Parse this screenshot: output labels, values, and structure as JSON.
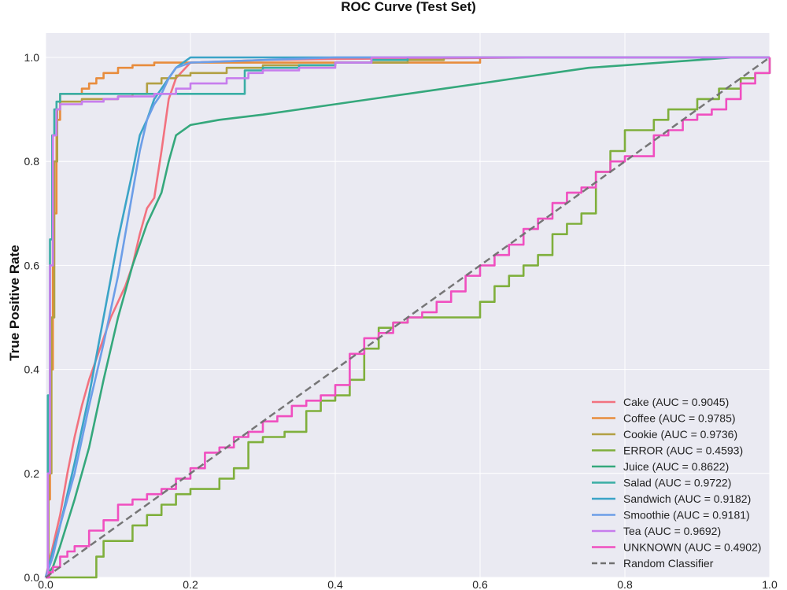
{
  "chart_data": {
    "type": "line",
    "title": "ROC Curve (Test Set)",
    "xlabel": "",
    "ylabel": "True Positive Rate",
    "xlim": [
      0.0,
      1.0
    ],
    "ylim": [
      0.0,
      1.0
    ],
    "x_ticks": [
      "0.0",
      "0.2",
      "0.4",
      "0.6",
      "0.8",
      "1.0"
    ],
    "y_ticks": [
      "0.0",
      "0.2",
      "0.4",
      "0.6",
      "0.8",
      "1.0"
    ],
    "grid": true,
    "legend_position": "bottom-right",
    "series": [
      {
        "name": "Cake (AUC = 0.9045)",
        "color": "#f2727f",
        "x": [
          0,
          0.005,
          0.01,
          0.02,
          0.03,
          0.04,
          0.05,
          0.06,
          0.07,
          0.08,
          0.09,
          0.1,
          0.11,
          0.12,
          0.13,
          0.14,
          0.15,
          0.16,
          0.17,
          0.18,
          0.2,
          0.3,
          0.4,
          0.5,
          0.6,
          0.7,
          0.8,
          0.9,
          1.0
        ],
        "y": [
          0,
          0.03,
          0.06,
          0.12,
          0.2,
          0.27,
          0.33,
          0.38,
          0.42,
          0.46,
          0.5,
          0.53,
          0.56,
          0.6,
          0.66,
          0.71,
          0.73,
          0.82,
          0.92,
          0.96,
          0.99,
          0.995,
          0.997,
          0.998,
          0.999,
          1.0,
          1.0,
          1.0,
          1.0
        ]
      },
      {
        "name": "Coffee (AUC = 0.9785)",
        "color": "#e88c3c",
        "x": [
          0,
          0.003,
          0.006,
          0.01,
          0.015,
          0.02,
          0.03,
          0.05,
          0.06,
          0.07,
          0.08,
          0.1,
          0.12,
          0.15,
          0.2,
          0.3,
          0.4,
          0.5,
          0.58,
          0.6,
          1.0
        ],
        "y": [
          0,
          0.15,
          0.4,
          0.7,
          0.88,
          0.93,
          0.93,
          0.94,
          0.95,
          0.96,
          0.97,
          0.98,
          0.985,
          0.99,
          0.99,
          0.99,
          0.99,
          0.99,
          0.99,
          1.0,
          1.0
        ],
        "step": true
      },
      {
        "name": "Cookie (AUC = 0.9736)",
        "color": "#b2a043",
        "x": [
          0,
          0.004,
          0.008,
          0.012,
          0.016,
          0.02,
          0.05,
          0.1,
          0.12,
          0.14,
          0.16,
          0.18,
          0.2,
          0.25,
          0.3,
          0.4,
          0.5,
          0.55,
          1.0
        ],
        "y": [
          0,
          0.2,
          0.5,
          0.8,
          0.9,
          0.915,
          0.92,
          0.925,
          0.93,
          0.95,
          0.96,
          0.965,
          0.97,
          0.98,
          0.985,
          0.99,
          0.995,
          1.0,
          1.0
        ],
        "step": true
      },
      {
        "name": "ERROR (AUC = 0.4593)",
        "color": "#7faf3c",
        "x": [
          0,
          0.06,
          0.07,
          0.08,
          0.1,
          0.12,
          0.14,
          0.16,
          0.18,
          0.2,
          0.22,
          0.24,
          0.26,
          0.28,
          0.3,
          0.33,
          0.36,
          0.38,
          0.4,
          0.42,
          0.44,
          0.46,
          0.48,
          0.5,
          0.52,
          0.55,
          0.58,
          0.6,
          0.62,
          0.64,
          0.66,
          0.68,
          0.7,
          0.72,
          0.74,
          0.76,
          0.78,
          0.8,
          0.82,
          0.84,
          0.86,
          0.9,
          0.93,
          0.96,
          0.98,
          1.0
        ],
        "y": [
          0,
          0,
          0.04,
          0.07,
          0.07,
          0.1,
          0.12,
          0.14,
          0.16,
          0.17,
          0.17,
          0.19,
          0.21,
          0.26,
          0.27,
          0.28,
          0.32,
          0.34,
          0.35,
          0.38,
          0.44,
          0.48,
          0.49,
          0.5,
          0.5,
          0.5,
          0.5,
          0.53,
          0.56,
          0.58,
          0.6,
          0.62,
          0.66,
          0.68,
          0.7,
          0.78,
          0.82,
          0.86,
          0.86,
          0.88,
          0.9,
          0.92,
          0.94,
          0.96,
          0.97,
          1.0
        ],
        "step": true
      },
      {
        "name": "Juice (AUC = 0.8622)",
        "color": "#35a87c",
        "x": [
          0,
          0.01,
          0.02,
          0.04,
          0.06,
          0.08,
          0.1,
          0.12,
          0.14,
          0.16,
          0.17,
          0.18,
          0.2,
          0.24,
          0.3,
          0.35,
          0.4,
          0.45,
          0.5,
          0.55,
          0.6,
          0.65,
          0.7,
          0.75,
          0.8,
          0.85,
          0.9,
          0.95,
          1.0
        ],
        "y": [
          0,
          0.02,
          0.06,
          0.15,
          0.25,
          0.38,
          0.5,
          0.6,
          0.68,
          0.74,
          0.8,
          0.85,
          0.87,
          0.88,
          0.89,
          0.9,
          0.91,
          0.92,
          0.93,
          0.94,
          0.95,
          0.96,
          0.97,
          0.98,
          0.985,
          0.99,
          0.995,
          1.0,
          1.0
        ]
      },
      {
        "name": "Salad (AUC = 0.9722)",
        "color": "#3aaea5",
        "x": [
          0,
          0.003,
          0.006,
          0.009,
          0.012,
          0.015,
          0.02,
          0.1,
          0.27,
          0.275,
          0.3,
          0.35,
          0.4,
          0.45,
          0.5,
          0.55,
          1.0
        ],
        "y": [
          0,
          0.35,
          0.65,
          0.85,
          0.9,
          0.915,
          0.93,
          0.93,
          0.93,
          0.975,
          0.98,
          0.985,
          0.99,
          0.995,
          1.0,
          1.0,
          1.0
        ],
        "step": true
      },
      {
        "name": "Sandwich (AUC = 0.9182)",
        "color": "#3ba4c7",
        "x": [
          0,
          0.01,
          0.02,
          0.04,
          0.06,
          0.08,
          0.1,
          0.12,
          0.13,
          0.14,
          0.15,
          0.16,
          0.17,
          0.18,
          0.19,
          0.2,
          0.3,
          0.4,
          0.5,
          1.0
        ],
        "y": [
          0,
          0.05,
          0.1,
          0.22,
          0.35,
          0.5,
          0.65,
          0.78,
          0.85,
          0.88,
          0.92,
          0.94,
          0.96,
          0.98,
          0.99,
          1.0,
          1.0,
          1.0,
          1.0,
          1.0
        ]
      },
      {
        "name": "Smoothie (AUC = 0.9181)",
        "color": "#6c9ee8",
        "x": [
          0,
          0.01,
          0.02,
          0.04,
          0.06,
          0.08,
          0.1,
          0.11,
          0.12,
          0.13,
          0.14,
          0.15,
          0.16,
          0.17,
          0.18,
          0.2,
          0.3,
          0.4,
          0.5,
          1.0
        ],
        "y": [
          0,
          0.04,
          0.1,
          0.2,
          0.33,
          0.45,
          0.58,
          0.66,
          0.74,
          0.82,
          0.88,
          0.91,
          0.93,
          0.96,
          0.98,
          0.99,
          0.995,
          1.0,
          1.0,
          1.0
        ]
      },
      {
        "name": "Tea (AUC = 0.9692)",
        "color": "#c77ded",
        "x": [
          0,
          0.003,
          0.006,
          0.01,
          0.015,
          0.02,
          0.05,
          0.08,
          0.1,
          0.15,
          0.18,
          0.2,
          0.25,
          0.28,
          0.3,
          0.35,
          0.4,
          0.45,
          0.5,
          1.0
        ],
        "y": [
          0,
          0.2,
          0.6,
          0.85,
          0.9,
          0.91,
          0.915,
          0.92,
          0.925,
          0.93,
          0.94,
          0.95,
          0.96,
          0.97,
          0.975,
          0.98,
          0.99,
          1.0,
          1.0,
          1.0
        ],
        "step": true
      },
      {
        "name": "UNKNOWN (AUC = 0.4902)",
        "color": "#f04fc0",
        "x": [
          0,
          0.005,
          0.01,
          0.02,
          0.03,
          0.04,
          0.06,
          0.08,
          0.1,
          0.12,
          0.14,
          0.16,
          0.18,
          0.2,
          0.22,
          0.24,
          0.26,
          0.28,
          0.3,
          0.32,
          0.34,
          0.36,
          0.38,
          0.4,
          0.42,
          0.44,
          0.46,
          0.48,
          0.5,
          0.52,
          0.54,
          0.56,
          0.58,
          0.6,
          0.62,
          0.64,
          0.66,
          0.68,
          0.7,
          0.72,
          0.74,
          0.76,
          0.78,
          0.8,
          0.84,
          0.86,
          0.88,
          0.9,
          0.92,
          0.94,
          0.96,
          0.98,
          1.0
        ],
        "y": [
          0,
          0.01,
          0.02,
          0.04,
          0.05,
          0.06,
          0.09,
          0.11,
          0.14,
          0.15,
          0.16,
          0.17,
          0.19,
          0.21,
          0.24,
          0.25,
          0.27,
          0.28,
          0.3,
          0.31,
          0.33,
          0.34,
          0.35,
          0.37,
          0.43,
          0.46,
          0.47,
          0.49,
          0.5,
          0.51,
          0.53,
          0.55,
          0.58,
          0.6,
          0.62,
          0.64,
          0.67,
          0.69,
          0.72,
          0.74,
          0.75,
          0.78,
          0.8,
          0.81,
          0.85,
          0.86,
          0.88,
          0.89,
          0.9,
          0.92,
          0.95,
          0.97,
          1.0
        ],
        "step": true
      },
      {
        "name": "Random Classifier",
        "color": "#707070",
        "dashed": true,
        "x": [
          0,
          1.0
        ],
        "y": [
          0,
          1.0
        ]
      }
    ]
  }
}
